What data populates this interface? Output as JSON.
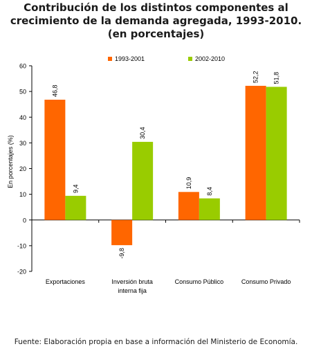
{
  "chart_data": {
    "type": "bar",
    "title": [
      "Contribución de los distintos componentes al",
      "crecimiento de la demanda agregada, 1993-2010.",
      "(en porcentajes)"
    ],
    "ylabel": "En porcentajes (%)",
    "xlabel": "",
    "ylim": [
      -20,
      60
    ],
    "yticks": [
      60,
      50,
      40,
      30,
      20,
      10,
      0,
      -10,
      -20
    ],
    "categories": [
      [
        "Exportaciones"
      ],
      [
        "Inversión bruta",
        "interna fija"
      ],
      [
        "Consumo Público"
      ],
      [
        "Consumo Privado"
      ]
    ],
    "series": [
      {
        "name": "1993-2001",
        "color": "#ff6600",
        "values": [
          46.8,
          -9.8,
          10.9,
          52.2
        ],
        "labels": [
          "46,8",
          "-9,8",
          "10,9",
          "52,2"
        ]
      },
      {
        "name": "2002-2010",
        "color": "#99cc00",
        "values": [
          9.4,
          30.4,
          8.4,
          51.8
        ],
        "labels": [
          "9,4",
          "30,4",
          "8,4",
          "51,8"
        ]
      }
    ],
    "legend": "top",
    "grid": false
  },
  "source": "Fuente: Elaboración propia en base a información del Ministerio de Economía."
}
